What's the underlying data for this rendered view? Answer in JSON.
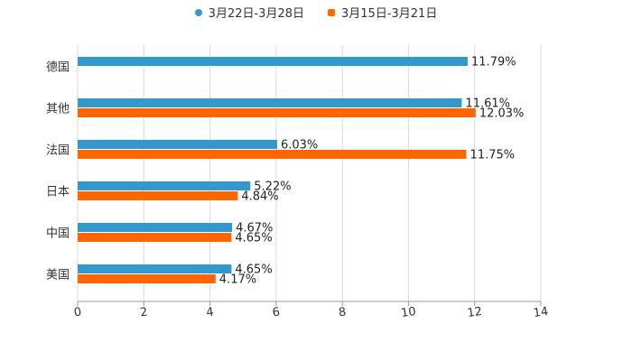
{
  "chart_data": {
    "type": "bar",
    "orientation": "horizontal",
    "categories": [
      "德国",
      "其他",
      "法国",
      "日本",
      "中国",
      "美国"
    ],
    "series": [
      {
        "name": "3月22日-3月28日",
        "color": "#3399CC",
        "values": [
          11.79,
          11.61,
          6.03,
          5.22,
          4.67,
          4.65
        ],
        "labels": [
          "11.79%",
          "11.61%",
          "6.03%",
          "5.22%",
          "4.67%",
          "4.65%"
        ]
      },
      {
        "name": "3月15日-3月21日",
        "color": "#FF6600",
        "values": [
          null,
          12.03,
          11.75,
          4.84,
          4.65,
          4.17
        ],
        "labels": [
          "",
          "12.03%",
          "11.75%",
          "4.84%",
          "4.65%",
          "4.17%"
        ]
      }
    ],
    "xlim": [
      0,
      14
    ],
    "xticks": [
      "0",
      "2",
      "4",
      "6",
      "8",
      "10",
      "12",
      "14"
    ],
    "grid": true,
    "legend_position": "top-center",
    "title": "",
    "xlabel": "",
    "ylabel": ""
  }
}
